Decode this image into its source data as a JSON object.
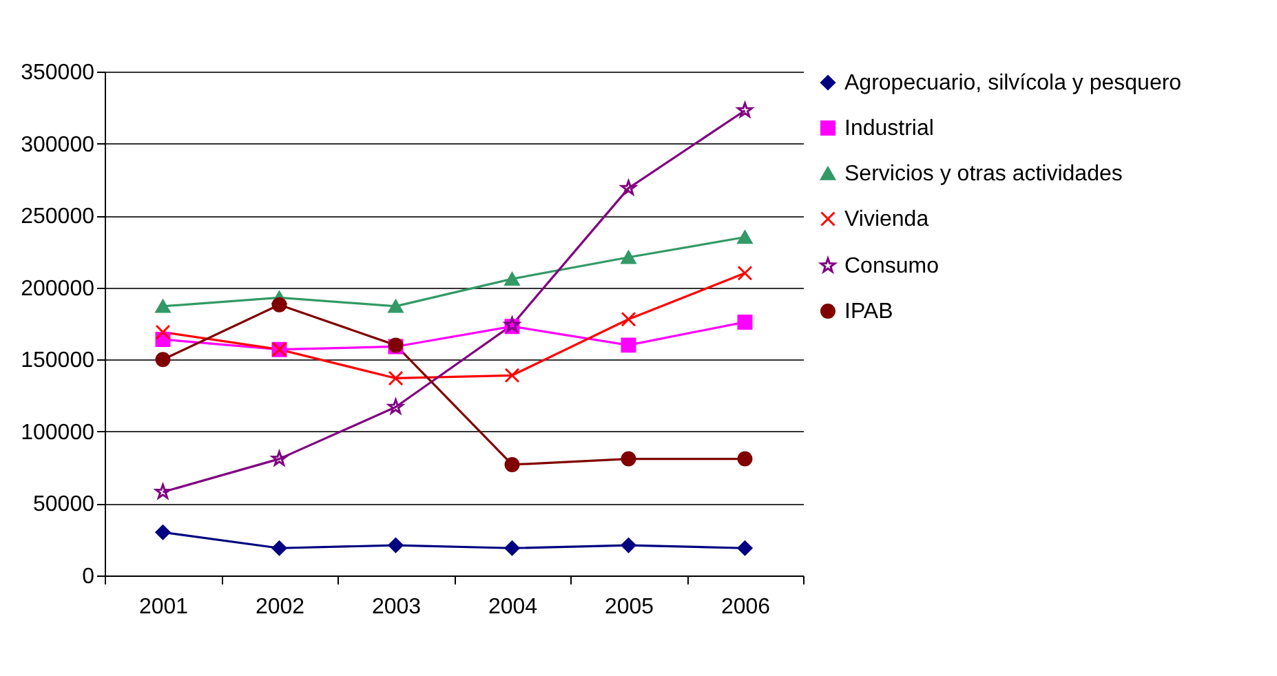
{
  "chart_data": {
    "type": "line",
    "categories": [
      "2001",
      "2002",
      "2003",
      "2004",
      "2005",
      "2006"
    ],
    "series": [
      {
        "name": "Agropecuario, silvícola y pesquero",
        "color": "#000080",
        "marker": "diamond",
        "values": [
          30000,
          19000,
          21000,
          19000,
          21000,
          19000
        ]
      },
      {
        "name": "Industrial",
        "color": "#ff00ff",
        "marker": "square",
        "values": [
          164000,
          157000,
          159000,
          173000,
          160000,
          176000
        ]
      },
      {
        "name": "Servicios y otras actividades",
        "color": "#339966",
        "marker": "triangle",
        "values": [
          187000,
          193000,
          187000,
          206000,
          221000,
          235000
        ]
      },
      {
        "name": "Vivienda",
        "color": "#ff0000",
        "marker": "cross",
        "values": [
          169000,
          157000,
          137000,
          139000,
          178000,
          210000
        ]
      },
      {
        "name": "Consumo",
        "color": "#800080",
        "marker": "star",
        "values": [
          58000,
          81000,
          117000,
          174000,
          269000,
          323000
        ]
      },
      {
        "name": "IPAB",
        "color": "#800000",
        "marker": "circle",
        "values": [
          150000,
          188000,
          160000,
          77000,
          81000,
          81000
        ]
      }
    ],
    "ylim": [
      0,
      350000
    ],
    "yticks": [
      0,
      50000,
      100000,
      150000,
      200000,
      250000,
      300000,
      350000
    ],
    "grid": "y",
    "legend": "right"
  }
}
